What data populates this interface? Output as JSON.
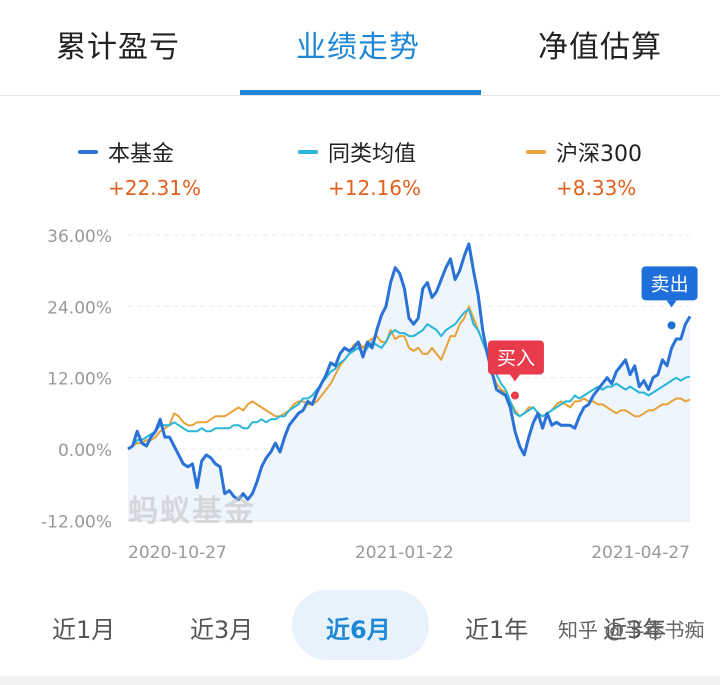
{
  "tabs": [
    "累计盈亏",
    "业绩走势",
    "净值估算"
  ],
  "active_tab": "业绩走势",
  "legend": [
    {
      "name": "本基金",
      "value": "+22.31%",
      "color": "#2a72d6"
    },
    {
      "name": "同类均值",
      "value": "+12.16%",
      "color": "#29b6d8"
    },
    {
      "name": "沪深300",
      "value": "+8.33%",
      "color": "#e8a23a"
    }
  ],
  "watermark": "蚂蚁基金",
  "periods": [
    "近1月",
    "近3月",
    "近6月",
    "近1年",
    "近3年"
  ],
  "active_period": "近6月",
  "credit": "知乎 @半卷书痴",
  "chart_data": {
    "type": "line",
    "y_ticks": [
      "36.00%",
      "24.00%",
      "12.00%",
      "0.00%",
      "-12.00%"
    ],
    "ylim": [
      -12,
      36
    ],
    "x_ticks": [
      "2020-10-27",
      "2021-01-22",
      "2021-04-27"
    ],
    "x_tick_index": [
      0,
      60,
      120
    ],
    "annotations": [
      {
        "label": "买入",
        "x": 84,
        "y": 9
      },
      {
        "label": "卖出",
        "x": 118,
        "y": 20.8
      }
    ],
    "series": [
      {
        "name": "本基金",
        "color": "#2a72d6",
        "values": [
          0,
          0.5,
          3,
          1,
          0.5,
          2,
          3,
          5,
          2,
          2,
          0.5,
          -1,
          -2.5,
          -3,
          -2.5,
          -6.5,
          -2,
          -1,
          -1.5,
          -2.5,
          -3,
          -7.5,
          -7,
          -8,
          -8.5,
          -7.5,
          -8.5,
          -7.5,
          -5.5,
          -3,
          -1.5,
          -0.5,
          1,
          -0.5,
          2,
          4,
          5,
          6,
          6.5,
          8,
          7.5,
          9.5,
          11,
          12.5,
          14.5,
          14,
          16,
          17,
          16.5,
          17,
          18,
          15.5,
          18,
          17,
          20,
          22.5,
          24,
          28,
          30.5,
          29.5,
          27,
          22,
          21,
          22,
          27,
          28,
          25.5,
          26.5,
          28.5,
          30.5,
          32,
          28.5,
          30,
          32.5,
          34.5,
          30,
          26,
          20,
          16,
          13,
          10,
          9.5,
          9,
          7,
          3,
          0.5,
          -1,
          2,
          4.5,
          6,
          3.5,
          6,
          4,
          4.5,
          4,
          4,
          4,
          3.5,
          5.5,
          7,
          7.5,
          9,
          10,
          11,
          12,
          11,
          13,
          14,
          15,
          12.5,
          14,
          10.5,
          11.5,
          10,
          12,
          12.5,
          15,
          14,
          17,
          18.5,
          18.5,
          21,
          22.31
        ]
      },
      {
        "name": "同类均值",
        "color": "#29b6d8",
        "values": [
          0,
          0.5,
          1.5,
          1.5,
          2,
          2.5,
          3,
          4,
          4,
          4,
          4.5,
          4,
          3.5,
          3,
          3,
          3,
          3.5,
          3,
          3,
          3.5,
          3.5,
          3.5,
          3.5,
          4,
          4,
          3.5,
          3.5,
          4.5,
          4.5,
          5,
          4.5,
          5,
          5,
          5.5,
          5.5,
          6.5,
          7,
          7.5,
          8.5,
          8.5,
          9,
          10,
          11,
          12,
          13,
          13.5,
          14.5,
          15,
          16,
          16.5,
          17,
          16,
          17,
          18,
          17.5,
          17,
          18,
          19.5,
          20,
          19.5,
          19.5,
          19,
          19,
          19.5,
          20,
          21,
          20.5,
          20,
          19,
          20,
          20.5,
          21,
          22,
          23,
          23.5,
          21,
          20,
          18,
          16,
          14,
          12.5,
          11,
          10,
          8,
          6,
          5.5,
          6,
          6.5,
          7,
          6,
          5.5,
          6,
          6.5,
          7,
          7.5,
          8,
          8,
          9,
          8.5,
          9,
          9.5,
          10,
          10.5,
          10,
          10.5,
          10.5,
          11,
          10.5,
          10,
          10.5,
          10,
          9.5,
          9.5,
          9,
          9.5,
          10,
          10.5,
          11,
          11.5,
          12,
          11.5,
          12,
          12.16
        ]
      },
      {
        "name": "沪深300",
        "color": "#e8a23a",
        "values": [
          0,
          0.5,
          1,
          1,
          1.5,
          1.5,
          2,
          3,
          3.5,
          4,
          6,
          5.5,
          4.5,
          4,
          4,
          4.5,
          4.5,
          4.5,
          5,
          5.5,
          5.5,
          5.5,
          6,
          6.5,
          7,
          6.5,
          7.5,
          8,
          7.5,
          7,
          6.5,
          6,
          5.5,
          5.5,
          6,
          6.5,
          7.5,
          8,
          8,
          7.5,
          7.5,
          8,
          9,
          10,
          11,
          12.5,
          14,
          15,
          16,
          17.5,
          18,
          17,
          18,
          18.5,
          19,
          18,
          18,
          20,
          18.5,
          19,
          19,
          17,
          16.5,
          17,
          16,
          16,
          17,
          16,
          15,
          17,
          19,
          19,
          21,
          22,
          24,
          22,
          20,
          18,
          16,
          13,
          11,
          10,
          9.5,
          8,
          6.5,
          5.5,
          6,
          7,
          7,
          6,
          5.5,
          6,
          6.5,
          7.5,
          8,
          7.5,
          7,
          8,
          8,
          8.5,
          8,
          8,
          7.5,
          7.5,
          7,
          6.5,
          6,
          6.5,
          6.5,
          6,
          5.5,
          5.5,
          6,
          6.5,
          6.5,
          7,
          7.5,
          7.5,
          8,
          8.5,
          8.5,
          8,
          8.33
        ]
      }
    ]
  }
}
